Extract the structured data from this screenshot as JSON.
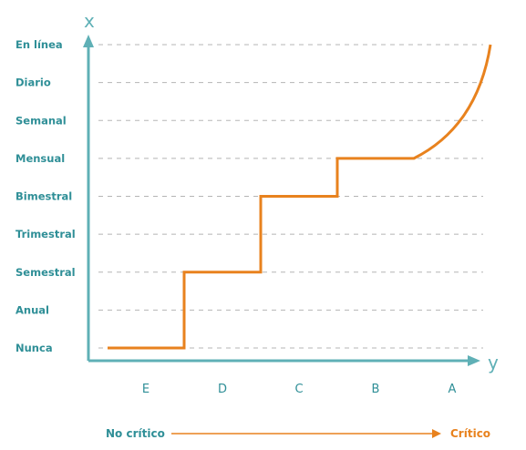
{
  "chart_data": {
    "type": "line",
    "title": "",
    "xlabel": "y",
    "ylabel": "x",
    "y_levels": [
      "Nunca",
      "Anual",
      "Semestral",
      "Trimestral",
      "Bimestral",
      "Mensual",
      "Semanal",
      "Diario",
      "En línea"
    ],
    "categories": [
      "E",
      "D",
      "C",
      "B",
      "A"
    ],
    "series": [
      {
        "values": [
          "Nunca",
          "Semestral",
          "Bimestral",
          "Mensual",
          "En línea"
        ],
        "color": "#e8821e"
      }
    ],
    "grid": true,
    "criticality_scale": {
      "from": "No crítico",
      "to": "Crítico",
      "color_from": "#2f8f97",
      "color_to": "#e8821e"
    },
    "colors": {
      "axis": "#5fb0b6",
      "label": "#2f8f97",
      "grid": "#b5b5b5",
      "line": "#e8821e"
    }
  }
}
